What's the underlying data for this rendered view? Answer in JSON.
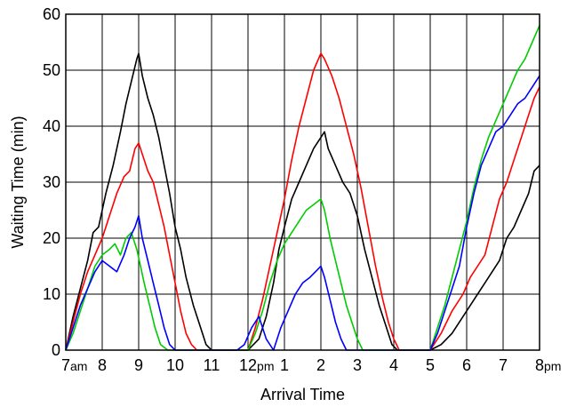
{
  "chart_data": {
    "type": "line",
    "title": "",
    "xlabel": "Arrival Time",
    "ylabel": "Waiting Time (min)",
    "xlim": [
      7,
      20
    ],
    "ylim": [
      0,
      60
    ],
    "grid": true,
    "legend": "none",
    "x_ticks": [
      {
        "value": 7,
        "label": "7",
        "suffix": "am"
      },
      {
        "value": 8,
        "label": "8",
        "suffix": ""
      },
      {
        "value": 9,
        "label": "9",
        "suffix": ""
      },
      {
        "value": 10,
        "label": "10",
        "suffix": ""
      },
      {
        "value": 11,
        "label": "11",
        "suffix": ""
      },
      {
        "value": 12,
        "label": "12",
        "suffix": "pm"
      },
      {
        "value": 13,
        "label": "1",
        "suffix": ""
      },
      {
        "value": 14,
        "label": "2",
        "suffix": ""
      },
      {
        "value": 15,
        "label": "3",
        "suffix": ""
      },
      {
        "value": 16,
        "label": "4",
        "suffix": ""
      },
      {
        "value": 17,
        "label": "5",
        "suffix": ""
      },
      {
        "value": 18,
        "label": "6",
        "suffix": ""
      },
      {
        "value": 19,
        "label": "7",
        "suffix": ""
      },
      {
        "value": 20,
        "label": "8",
        "suffix": "pm"
      }
    ],
    "y_ticks": [
      {
        "value": 0,
        "label": "0"
      },
      {
        "value": 10,
        "label": "10"
      },
      {
        "value": 20,
        "label": "20"
      },
      {
        "value": 30,
        "label": "30"
      },
      {
        "value": 40,
        "label": "40"
      },
      {
        "value": 50,
        "label": "50"
      },
      {
        "value": 60,
        "label": "60"
      }
    ],
    "series": [
      {
        "color": "#000000",
        "points": [
          [
            7.0,
            0
          ],
          [
            7.2,
            6
          ],
          [
            7.4,
            11
          ],
          [
            7.6,
            16
          ],
          [
            7.75,
            21
          ],
          [
            7.9,
            22
          ],
          [
            8.1,
            28
          ],
          [
            8.3,
            33
          ],
          [
            8.5,
            39
          ],
          [
            8.65,
            44
          ],
          [
            8.8,
            48
          ],
          [
            8.95,
            52
          ],
          [
            9.0,
            53
          ],
          [
            9.1,
            49
          ],
          [
            9.25,
            45
          ],
          [
            9.4,
            42
          ],
          [
            9.55,
            38
          ],
          [
            9.7,
            33
          ],
          [
            9.85,
            28
          ],
          [
            10.0,
            22
          ],
          [
            10.15,
            18
          ],
          [
            10.3,
            13
          ],
          [
            10.5,
            8
          ],
          [
            10.7,
            4
          ],
          [
            10.85,
            1
          ],
          [
            11.0,
            0
          ],
          [
            12.0,
            0
          ],
          [
            12.3,
            2
          ],
          [
            12.5,
            6
          ],
          [
            12.7,
            12
          ],
          [
            12.85,
            18
          ],
          [
            13.0,
            22
          ],
          [
            13.2,
            27
          ],
          [
            13.4,
            30
          ],
          [
            13.6,
            33
          ],
          [
            13.8,
            36
          ],
          [
            14.0,
            38
          ],
          [
            14.1,
            39
          ],
          [
            14.2,
            36
          ],
          [
            14.4,
            33
          ],
          [
            14.6,
            30
          ],
          [
            14.8,
            28
          ],
          [
            15.0,
            24
          ],
          [
            15.2,
            18
          ],
          [
            15.4,
            13
          ],
          [
            15.6,
            8
          ],
          [
            15.8,
            4
          ],
          [
            15.95,
            1
          ],
          [
            16.1,
            0
          ],
          [
            17.0,
            0
          ],
          [
            17.3,
            1
          ],
          [
            17.6,
            3
          ],
          [
            17.9,
            6
          ],
          [
            18.2,
            9
          ],
          [
            18.5,
            12
          ],
          [
            18.7,
            14
          ],
          [
            18.9,
            16
          ],
          [
            19.1,
            20
          ],
          [
            19.3,
            22
          ],
          [
            19.5,
            25
          ],
          [
            19.7,
            28
          ],
          [
            19.85,
            32
          ],
          [
            20.0,
            33
          ]
        ]
      },
      {
        "color": "#ff0000",
        "points": [
          [
            7.0,
            0
          ],
          [
            7.2,
            5
          ],
          [
            7.4,
            10
          ],
          [
            7.6,
            14
          ],
          [
            7.8,
            17
          ],
          [
            8.0,
            20
          ],
          [
            8.2,
            24
          ],
          [
            8.4,
            28
          ],
          [
            8.6,
            31
          ],
          [
            8.75,
            32
          ],
          [
            8.9,
            36
          ],
          [
            9.0,
            37
          ],
          [
            9.1,
            35
          ],
          [
            9.25,
            32
          ],
          [
            9.4,
            30
          ],
          [
            9.55,
            26
          ],
          [
            9.7,
            22
          ],
          [
            9.85,
            17
          ],
          [
            10.0,
            12
          ],
          [
            10.15,
            7
          ],
          [
            10.3,
            3
          ],
          [
            10.45,
            1
          ],
          [
            10.6,
            0
          ],
          [
            12.0,
            0
          ],
          [
            12.2,
            4
          ],
          [
            12.4,
            9
          ],
          [
            12.6,
            15
          ],
          [
            12.8,
            21
          ],
          [
            13.0,
            27
          ],
          [
            13.2,
            34
          ],
          [
            13.4,
            40
          ],
          [
            13.6,
            45
          ],
          [
            13.8,
            50
          ],
          [
            14.0,
            53
          ],
          [
            14.1,
            52
          ],
          [
            14.3,
            49
          ],
          [
            14.5,
            45
          ],
          [
            14.7,
            40
          ],
          [
            14.9,
            35
          ],
          [
            15.1,
            29
          ],
          [
            15.3,
            22
          ],
          [
            15.5,
            15
          ],
          [
            15.7,
            9
          ],
          [
            15.85,
            5
          ],
          [
            16.0,
            2
          ],
          [
            16.15,
            0
          ],
          [
            17.0,
            0
          ],
          [
            17.3,
            3
          ],
          [
            17.6,
            7
          ],
          [
            17.9,
            10
          ],
          [
            18.1,
            13
          ],
          [
            18.3,
            15
          ],
          [
            18.5,
            17
          ],
          [
            18.7,
            22
          ],
          [
            18.9,
            27
          ],
          [
            19.1,
            30
          ],
          [
            19.3,
            34
          ],
          [
            19.5,
            38
          ],
          [
            19.7,
            42
          ],
          [
            19.85,
            45
          ],
          [
            20.0,
            47
          ]
        ]
      },
      {
        "color": "#00cc00",
        "points": [
          [
            7.0,
            0
          ],
          [
            7.2,
            3
          ],
          [
            7.4,
            7
          ],
          [
            7.6,
            11
          ],
          [
            7.8,
            15
          ],
          [
            8.0,
            17
          ],
          [
            8.2,
            18
          ],
          [
            8.35,
            19
          ],
          [
            8.5,
            17
          ],
          [
            8.65,
            20
          ],
          [
            8.8,
            21
          ],
          [
            8.95,
            18
          ],
          [
            9.05,
            15
          ],
          [
            9.15,
            12
          ],
          [
            9.3,
            8
          ],
          [
            9.45,
            4
          ],
          [
            9.6,
            1
          ],
          [
            9.8,
            0
          ],
          [
            12.0,
            0
          ],
          [
            12.2,
            3
          ],
          [
            12.4,
            7
          ],
          [
            12.6,
            12
          ],
          [
            12.8,
            16
          ],
          [
            13.0,
            19
          ],
          [
            13.2,
            21
          ],
          [
            13.4,
            23
          ],
          [
            13.6,
            25
          ],
          [
            13.8,
            26
          ],
          [
            14.0,
            27
          ],
          [
            14.1,
            25
          ],
          [
            14.25,
            20
          ],
          [
            14.4,
            16
          ],
          [
            14.55,
            12
          ],
          [
            14.7,
            8
          ],
          [
            14.85,
            5
          ],
          [
            15.0,
            2
          ],
          [
            15.15,
            0
          ],
          [
            17.0,
            0
          ],
          [
            17.2,
            4
          ],
          [
            17.4,
            8
          ],
          [
            17.6,
            13
          ],
          [
            17.8,
            18
          ],
          [
            18.0,
            23
          ],
          [
            18.2,
            29
          ],
          [
            18.4,
            34
          ],
          [
            18.6,
            38
          ],
          [
            18.8,
            41
          ],
          [
            19.0,
            44
          ],
          [
            19.2,
            47
          ],
          [
            19.4,
            50
          ],
          [
            19.6,
            52
          ],
          [
            19.8,
            55
          ],
          [
            20.0,
            58
          ]
        ]
      },
      {
        "color": "#0000ff",
        "points": [
          [
            7.0,
            0
          ],
          [
            7.2,
            4
          ],
          [
            7.4,
            8
          ],
          [
            7.6,
            11
          ],
          [
            7.8,
            14
          ],
          [
            8.0,
            16
          ],
          [
            8.2,
            15
          ],
          [
            8.4,
            14
          ],
          [
            8.6,
            17
          ],
          [
            8.75,
            20
          ],
          [
            8.9,
            22
          ],
          [
            9.0,
            24
          ],
          [
            9.1,
            20
          ],
          [
            9.25,
            16
          ],
          [
            9.4,
            12
          ],
          [
            9.55,
            8
          ],
          [
            9.7,
            4
          ],
          [
            9.85,
            1
          ],
          [
            10.0,
            0
          ],
          [
            11.7,
            0
          ],
          [
            11.9,
            1
          ],
          [
            12.1,
            4
          ],
          [
            12.3,
            6
          ],
          [
            12.5,
            2
          ],
          [
            12.7,
            0
          ],
          [
            12.9,
            4
          ],
          [
            13.1,
            7
          ],
          [
            13.3,
            10
          ],
          [
            13.5,
            12
          ],
          [
            13.7,
            13
          ],
          [
            13.85,
            14
          ],
          [
            14.0,
            15
          ],
          [
            14.1,
            13
          ],
          [
            14.25,
            9
          ],
          [
            14.4,
            5
          ],
          [
            14.55,
            2
          ],
          [
            14.7,
            0
          ],
          [
            17.0,
            0
          ],
          [
            17.2,
            3
          ],
          [
            17.4,
            7
          ],
          [
            17.6,
            11
          ],
          [
            17.8,
            15
          ],
          [
            18.0,
            22
          ],
          [
            18.2,
            28
          ],
          [
            18.4,
            33
          ],
          [
            18.6,
            36
          ],
          [
            18.8,
            39
          ],
          [
            19.0,
            40
          ],
          [
            19.2,
            42
          ],
          [
            19.4,
            44
          ],
          [
            19.6,
            45
          ],
          [
            19.8,
            47
          ],
          [
            20.0,
            49
          ]
        ]
      }
    ]
  }
}
